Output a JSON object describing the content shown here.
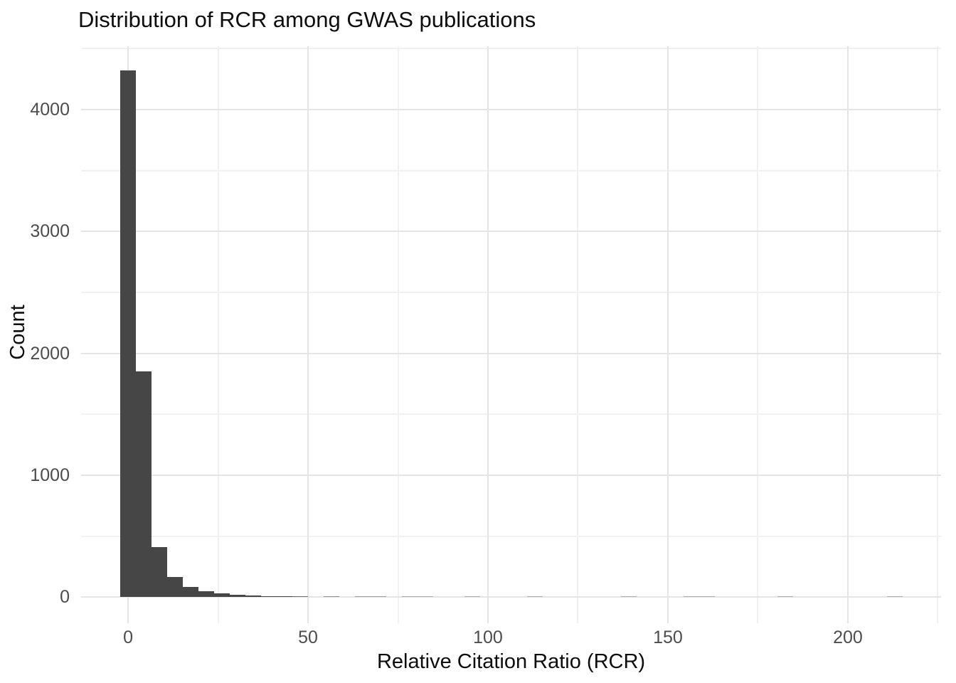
{
  "chart_data": {
    "type": "bar",
    "subtype": "histogram",
    "title": "Distribution of RCR among GWAS publications",
    "xlabel": "Relative Citation Ratio (RCR)",
    "ylabel": "Count",
    "bin_width": 4.35,
    "bin_centers": [
      0,
      4.35,
      8.7,
      13.05,
      17.4,
      21.75,
      26.1,
      30.45,
      34.8,
      39.15,
      43.5,
      47.85,
      52.2,
      56.55,
      60.9,
      65.25,
      69.6,
      73.95,
      78.3,
      82.65,
      87.0,
      91.35,
      95.7,
      100.05,
      104.4,
      108.75,
      113.1,
      117.45,
      121.8,
      126.15,
      130.5,
      134.85,
      139.2,
      143.55,
      147.9,
      152.25,
      156.6,
      160.95,
      165.3,
      169.65,
      174.0,
      178.35,
      182.7,
      187.05,
      191.4,
      195.75,
      200.1,
      204.45,
      208.8,
      213.15
    ],
    "counts": [
      4320,
      1850,
      410,
      163,
      81,
      46,
      30,
      19,
      13,
      9,
      7,
      5,
      0,
      3,
      0,
      2,
      2,
      0,
      1,
      1,
      0,
      0,
      1,
      0,
      0,
      0,
      1,
      0,
      0,
      0,
      0,
      0,
      1,
      0,
      0,
      0,
      1,
      1,
      0,
      0,
      0,
      0,
      1,
      0,
      0,
      0,
      0,
      0,
      0,
      1
    ],
    "x_ticks": [
      0,
      50,
      100,
      150,
      200
    ],
    "x_minor_ticks": [
      25,
      75,
      125,
      175,
      225
    ],
    "y_ticks": [
      0,
      1000,
      2000,
      3000,
      4000
    ],
    "y_minor_ticks": [
      500,
      1500,
      2500,
      3500,
      4500
    ],
    "xlim": [
      -13.05,
      225.9
    ],
    "ylim": [
      -215,
      4520
    ],
    "grid": true,
    "legend": "none",
    "colors": {
      "bar": "#464646",
      "grid_major": "#e4e4e4",
      "grid_minor": "#f0f0f0",
      "tick_label": "#4d4d4d",
      "text": "#0d0d0d",
      "background": "#ffffff"
    }
  }
}
